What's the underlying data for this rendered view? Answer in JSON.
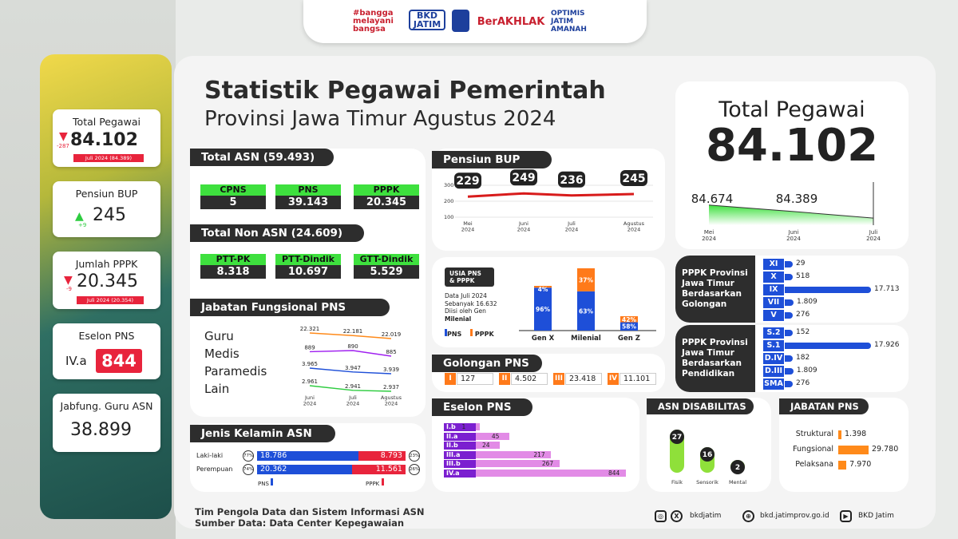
{
  "logos": {
    "l1": "#bangga melayani bangsa",
    "l2": "BKD JATIM",
    "l3": "BerAKHLAK",
    "l4": "OPTIMIS JATIM AMANAH"
  },
  "title": {
    "line1": "Statistik Pegawai Pemerintah",
    "line2": "Provinsi Jawa Timur Agustus 2024"
  },
  "side": {
    "total": {
      "label": "Total Pegawai",
      "delta": "-287",
      "value": "84.102",
      "sub": "Juli 2024 (84.389)"
    },
    "pensiun": {
      "label": "Pensiun BUP",
      "delta": "+9",
      "value": "245"
    },
    "pppk": {
      "label": "Jumlah PPPK",
      "delta": "-9",
      "value": "20.345",
      "sub": "Juli 2024 (20.354)"
    },
    "eselon": {
      "label": "Eselon PNS",
      "grade": "IV.a",
      "value": "844"
    },
    "jabfung": {
      "label": "Jabfung. Guru ASN",
      "value": "38.899"
    }
  },
  "total_asn": {
    "title": "Total ASN (59.493)",
    "items": [
      {
        "label": "CPNS",
        "value": "5"
      },
      {
        "label": "PNS",
        "value": "39.143"
      },
      {
        "label": "PPPK",
        "value": "20.345"
      }
    ]
  },
  "total_non_asn": {
    "title": "Total Non ASN (24.609)",
    "items": [
      {
        "label": "PTT-PK",
        "value": "8.318"
      },
      {
        "label": "PTT-Dindik",
        "value": "10.697"
      },
      {
        "label": "GTT-Dindik",
        "value": "5.529"
      }
    ]
  },
  "jabatan_fungsional": {
    "title": "Jabatan Fungsional PNS",
    "rows": [
      "Guru",
      "Medis",
      "Paramedis",
      "Lain"
    ]
  },
  "pensiun_bup": {
    "title": "Pensiun BUP"
  },
  "total_pegawai": {
    "title": "Total Pegawai",
    "value": "84.102"
  },
  "usia": {
    "title_line1": "USIA PNS",
    "title_line2": "& PPPK",
    "note_line1": "Data Juli 2024",
    "note_line2": "Sebanyak 16.632",
    "note_line3": "Diisi oleh Gen",
    "note_line4": "Milenial",
    "legend_pns": "PNS",
    "legend_pppk": "PPPK"
  },
  "golongan": {
    "title": "Golongan PNS",
    "items": [
      {
        "label": "I",
        "value": "127"
      },
      {
        "label": "II",
        "value": "4.502"
      },
      {
        "label": "III",
        "value": "23.418"
      },
      {
        "label": "IV",
        "value": "11.101"
      }
    ]
  },
  "pppk_golongan": {
    "title_line1": "PPPK Provinsi",
    "title_line2": "Jawa Timur",
    "title_line3": "Berdasarkan",
    "title_line4": "Golongan"
  },
  "pppk_pendidikan": {
    "title_line1": "PPPK Provinsi",
    "title_line2": "Jawa Timur",
    "title_line3": "Berdasarkan",
    "title_line4": "Pendidikan"
  },
  "jenis_kelamin": {
    "title": "Jenis Kelamin ASN",
    "legend_pns": "PNS",
    "legend_pppk": "PPPK"
  },
  "eselon_pns": {
    "title": "Eselon PNS"
  },
  "disabilitas": {
    "title": "ASN DISABILITAS"
  },
  "jabatan_pns": {
    "title": "JABATAN PNS"
  },
  "footer": {
    "line1": "Tim Pengola Data dan Sistem Informasi ASN",
    "line2": "Sumber Data: Data Center Kepegawaian",
    "social": "bkdjatim",
    "web": "bkd.jatimprov.go.id",
    "yt": "BKD Jatim"
  },
  "colors": {
    "green": "#3ee03e",
    "dark": "#2d2d2d",
    "blue": "#1e4fd8",
    "orange": "#ff7a1a",
    "red": "#e8243c",
    "pink": "#e28be6",
    "purple": "#7b1fd0",
    "lime": "#8fe03a"
  },
  "chart_data": [
    {
      "type": "line",
      "id": "pensiun_bup",
      "x": [
        "Mei\n2024",
        "Juni\n2024",
        "Juli\n2024",
        "Agustus\n2024"
      ],
      "values": [
        229,
        249,
        236,
        245
      ],
      "y_ticks": [
        "300",
        "200",
        "100"
      ]
    },
    {
      "type": "area",
      "id": "total_pegawai",
      "x": [
        "Mei\n2024",
        "Juni\n2024",
        "Juli\n2024"
      ],
      "values": [
        84674,
        84389,
        84102
      ],
      "labels": [
        "84.674",
        "84.389"
      ]
    },
    {
      "type": "line",
      "id": "jabatan_fungsional",
      "x": [
        "Juni\n2024",
        "Juli\n2024",
        "Agustus\n2024"
      ],
      "series": [
        {
          "name": "Guru",
          "values": [
            22321,
            22181,
            22019
          ],
          "labels": [
            "22.321",
            "22.181",
            "22.019"
          ],
          "color": "#ff8a1a"
        },
        {
          "name": "Medis",
          "values": [
            889,
            890,
            885
          ],
          "labels": [
            "889",
            "890",
            "885"
          ],
          "color": "#a020f0"
        },
        {
          "name": "Paramedis",
          "values": [
            3965,
            3947,
            3939
          ],
          "labels": [
            "3.965",
            "3.947",
            "3.939"
          ],
          "color": "#1e4fd8"
        },
        {
          "name": "Lain",
          "values": [
            2961,
            2941,
            2937
          ],
          "labels": [
            "2.961",
            "2.941",
            "2.937"
          ],
          "color": "#2ecc40"
        }
      ]
    },
    {
      "type": "bar",
      "id": "usia",
      "stacked": true,
      "categories": [
        "Gen X",
        "Milenial",
        "Gen Z"
      ],
      "series": [
        {
          "name": "PNS",
          "values": [
            96,
            63,
            58
          ],
          "labels": [
            "96%",
            "63%",
            "58%"
          ]
        },
        {
          "name": "PPPK",
          "values": [
            4,
            37,
            42
          ],
          "labels": [
            "4%",
            "37%",
            "42%"
          ]
        }
      ]
    },
    {
      "type": "bar",
      "id": "pppk_golongan",
      "orientation": "horizontal",
      "categories": [
        "XI",
        "X",
        "IX",
        "VII",
        "V"
      ],
      "values": [
        29,
        518,
        17713,
        1809,
        276
      ],
      "labels": [
        "29",
        "518",
        "17.713",
        "1.809",
        "276"
      ]
    },
    {
      "type": "bar",
      "id": "pppk_pendidikan",
      "orientation": "horizontal",
      "categories": [
        "S.2",
        "S.1",
        "D.IV",
        "D.III",
        "SMA"
      ],
      "values": [
        152,
        17926,
        182,
        1809,
        276
      ],
      "labels": [
        "152",
        "17.926",
        "182",
        "1.809",
        "276"
      ]
    },
    {
      "type": "bar",
      "id": "jenis_kelamin",
      "orientation": "horizontal",
      "stacked": true,
      "categories": [
        "Laki-laki",
        "Perempuan"
      ],
      "series": [
        {
          "name": "PNS",
          "values": [
            18786,
            20362
          ],
          "labels": [
            "18.786",
            "20.362"
          ],
          "pct": [
            "77%",
            "74%"
          ]
        },
        {
          "name": "PPPK",
          "values": [
            8793,
            11561
          ],
          "labels": [
            "8.793",
            "11.561"
          ],
          "pct": [
            "23%",
            "26%"
          ]
        }
      ]
    },
    {
      "type": "bar",
      "id": "eselon_pns",
      "orientation": "horizontal",
      "categories": [
        "I.b",
        "II.a",
        "II.b",
        "III.a",
        "III.b",
        "IV.a"
      ],
      "values": [
        1,
        45,
        24,
        217,
        267,
        844
      ],
      "labels": [
        "1",
        "45",
        "24",
        "217",
        "267",
        "844"
      ]
    },
    {
      "type": "bar",
      "id": "disabilitas",
      "categories": [
        "Fisik",
        "Sensorik",
        "Mental"
      ],
      "values": [
        27,
        16,
        2
      ],
      "labels": [
        "27",
        "16",
        "2"
      ]
    },
    {
      "type": "bar",
      "id": "jabatan_pns",
      "orientation": "horizontal",
      "categories": [
        "Struktural",
        "Fungsional",
        "Pelaksana"
      ],
      "values": [
        1398,
        29780,
        7970
      ],
      "labels": [
        "1.398",
        "29.780",
        "7.970"
      ]
    }
  ]
}
